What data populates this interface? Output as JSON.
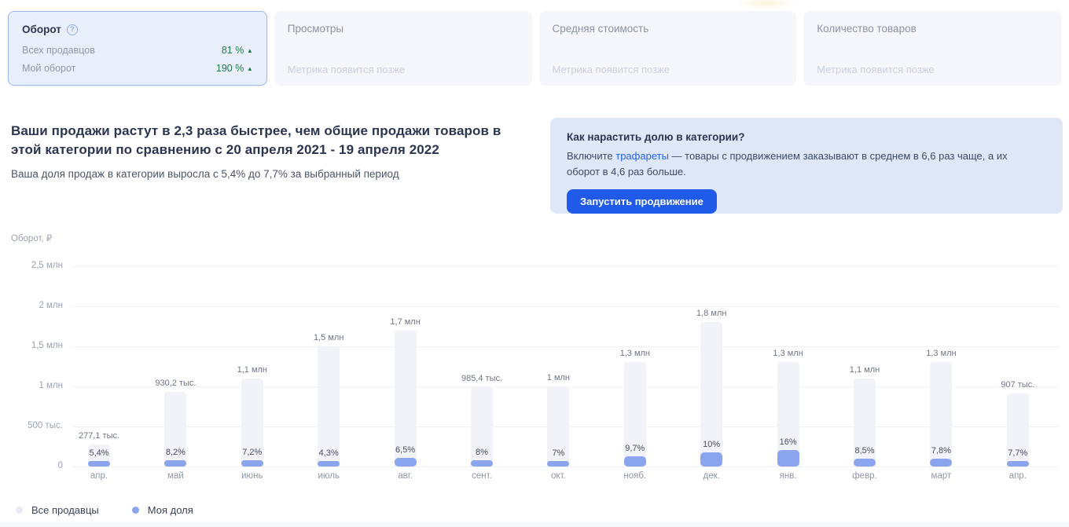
{
  "metric_cards": {
    "turnover": {
      "title": "Оборот",
      "rows": [
        {
          "label": "Всех продавцов",
          "value": "81 %",
          "trend": "up"
        },
        {
          "label": "Мой оборот",
          "value": "190 %",
          "trend": "up"
        }
      ]
    },
    "others": [
      {
        "title": "Просмотры",
        "placeholder": "Метрика появится позже"
      },
      {
        "title": "Средняя стоимость",
        "placeholder": "Метрика появится позже"
      },
      {
        "title": "Количество товаров",
        "placeholder": "Метрика появится позже"
      }
    ]
  },
  "summary": {
    "heading": "Ваши продажи растут в 2,3 раза быстрее, чем общие продажи товаров в этой категории по сравнению с 20 апреля 2021 - 19 апреля 2022",
    "subtext": "Ваша доля продаж в категории выросла с 5,4% до 7,7% за выбранный период"
  },
  "promo": {
    "title": "Как нарастить долю в категории?",
    "body_before_link": "Включите ",
    "link_text": "трафареты",
    "body_after_link": " — товары с продвижением заказывают в среднем в 6,6 раз чаще, а их оборот в 4,6 раз больше.",
    "button_label": "Запустить продвижение"
  },
  "chart_data": {
    "type": "bar",
    "title": "Оборот, ₽",
    "categories": [
      "апр.",
      "май",
      "июнь",
      "июль",
      "авг.",
      "сент.",
      "окт.",
      "нояб.",
      "дек.",
      "янв.",
      "февр.",
      "март",
      "апр."
    ],
    "series": [
      {
        "name": "Все продавцы",
        "values": [
          277100,
          930200,
          1100000,
          1500000,
          1700000,
          985400,
          1000000,
          1300000,
          1800000,
          1300000,
          1100000,
          1300000,
          907000
        ],
        "value_labels": [
          "277,1 тыс.",
          "930,2 тыс.",
          "1,1 млн",
          "1,5 млн",
          "1,7 млн",
          "985,4 тыс.",
          "1 млн",
          "1,3 млн",
          "1,8 млн",
          "1,3 млн",
          "1,1 млн",
          "1,3 млн",
          "907 тыс."
        ],
        "color": "#f1f3f8"
      },
      {
        "name": "Моя доля",
        "share_pct": [
          5.4,
          8.2,
          7.2,
          4.3,
          6.5,
          8,
          7,
          9.7,
          10,
          16,
          8.5,
          7.8,
          7.7
        ],
        "share_labels": [
          "5,4%",
          "8,2%",
          "7,2%",
          "4,3%",
          "6,5%",
          "8%",
          "7%",
          "9,7%",
          "10%",
          "16%",
          "8,5%",
          "7,8%",
          "7,7%"
        ],
        "color": "#8ba4ee"
      }
    ],
    "ylabel": "Оборот, ₽",
    "ylim": [
      0,
      2500000
    ],
    "y_ticks": [
      {
        "value": 0,
        "label": "0"
      },
      {
        "value": 500000,
        "label": "500 тыс."
      },
      {
        "value": 1000000,
        "label": "1 млн"
      },
      {
        "value": 1500000,
        "label": "1,5 млн"
      },
      {
        "value": 2000000,
        "label": "2 млн"
      },
      {
        "value": 2500000,
        "label": "2,5 млн"
      }
    ],
    "grid": true,
    "legend": [
      "Все продавцы",
      "Моя доля"
    ],
    "legend_position": "bottom"
  }
}
